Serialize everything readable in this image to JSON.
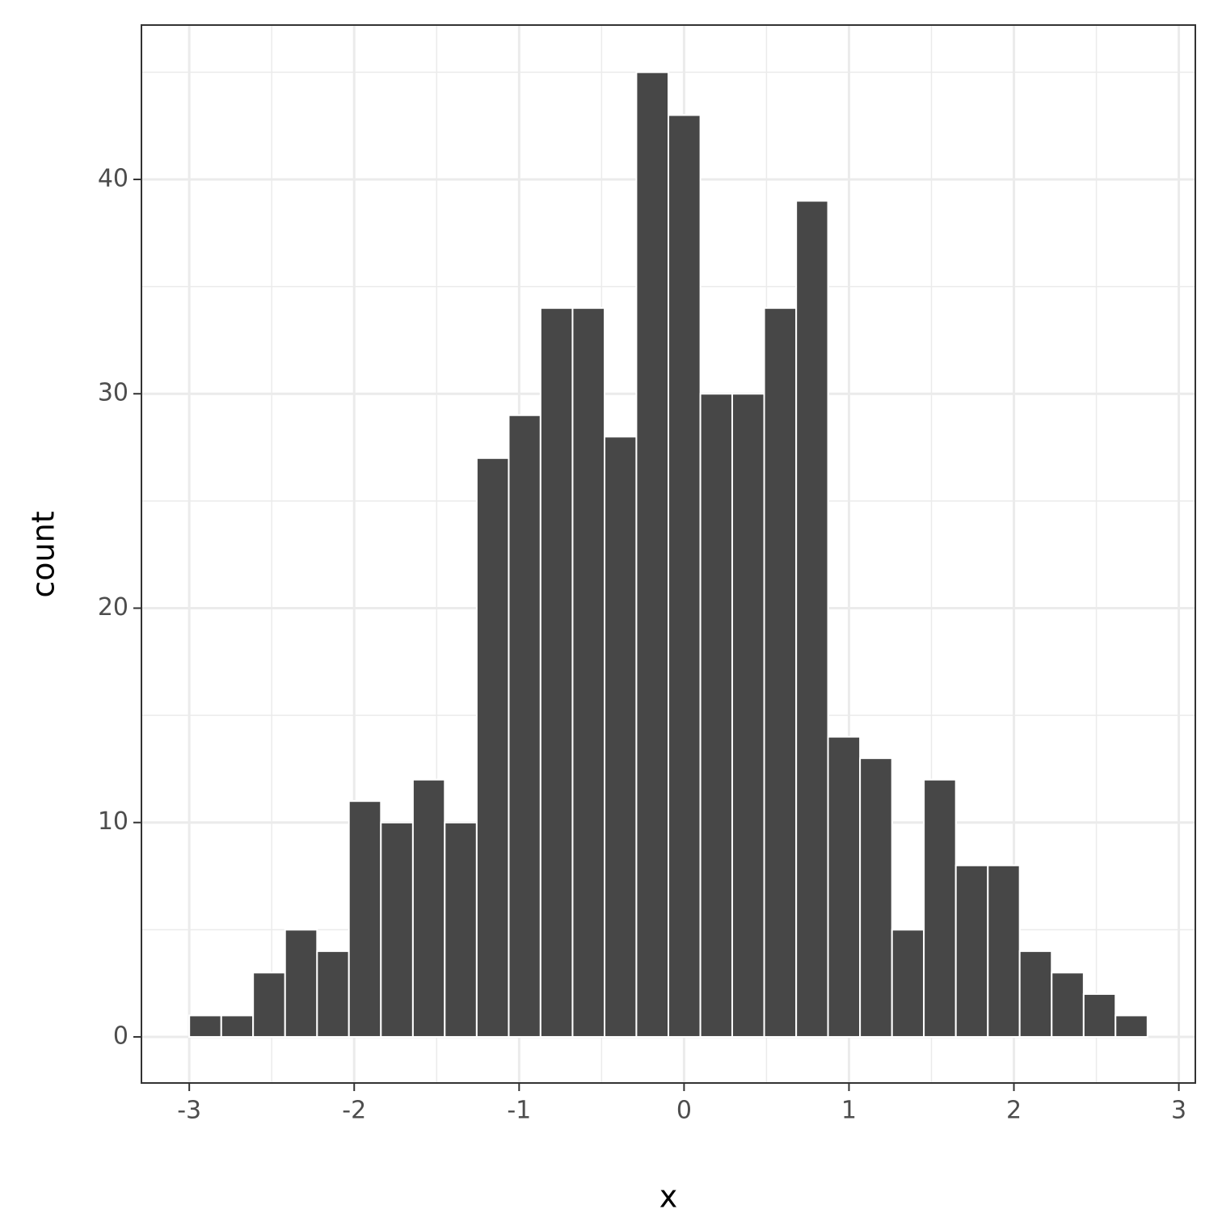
{
  "chart_data": {
    "type": "histogram",
    "x_label": "x",
    "y_label": "count",
    "bins": [
      -3.0,
      -2.806,
      -2.613,
      -2.419,
      -2.225,
      -2.032,
      -1.838,
      -1.644,
      -1.451,
      -1.257,
      -1.063,
      -0.87,
      -0.676,
      -0.482,
      -0.289,
      -0.095,
      0.099,
      0.292,
      0.486,
      0.68,
      0.873,
      1.067,
      1.261,
      1.454,
      1.648,
      1.842,
      2.035,
      2.229,
      2.423,
      2.616,
      2.81
    ],
    "values": [
      1,
      1,
      3,
      5,
      4,
      11,
      10,
      12,
      10,
      27,
      29,
      34,
      34,
      28,
      45,
      43,
      30,
      30,
      34,
      39,
      14,
      13,
      5,
      12,
      8,
      8,
      4,
      3,
      2,
      1
    ],
    "color": "#474747",
    "xlim": [
      -3.29,
      3.1
    ],
    "ylim": [
      -2.15,
      47.2
    ],
    "xticks": [
      -3,
      -2,
      -1,
      0,
      1,
      2,
      3
    ],
    "yticks": [
      0,
      10,
      20,
      30,
      40
    ],
    "x_minor_breaks": [
      -2.5,
      -1.5,
      -0.5,
      0.5,
      1.5,
      2.5
    ],
    "y_minor_breaks": [
      5,
      15,
      25,
      35,
      45
    ],
    "grid": true
  }
}
